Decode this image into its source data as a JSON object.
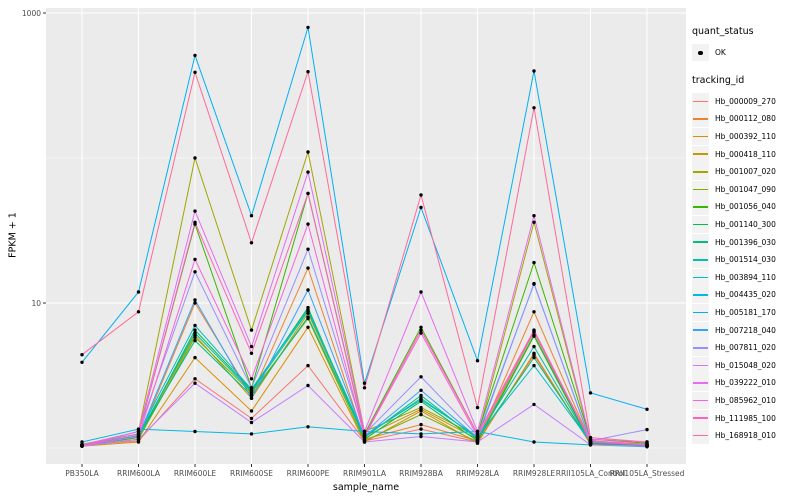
{
  "figure": {
    "background": "#FFFFFF",
    "panel_background": "#EBEBEB",
    "grid_color": "#FFFFFF",
    "point_color": "#000000",
    "tick_color": "#333333",
    "tick_text_color": "#4D4D4D"
  },
  "chart_data": {
    "type": "line",
    "title": "",
    "xlabel": "sample_name",
    "ylabel": "FPKM + 1",
    "y_scale": "log10",
    "ylim": [
      0.93,
      1100
    ],
    "grid": "major-and-minor-white-on-gray",
    "legend_position": "right",
    "y_tick_labels": [
      "1000",
      "10"
    ],
    "y_tick_values": [
      1000,
      10
    ],
    "y_minor_grid_values": [
      100,
      1
    ],
    "categories": [
      "PB350LA",
      "RRIM600LA",
      "RRIM600LE",
      "RRIM600SE",
      "RRIM600PE",
      "RRIM901LA",
      "RRIM928BA",
      "RRIM928LA",
      "RRIM928LE",
      "RRII105LA_Control",
      "RRII105LA_Stressed"
    ],
    "series": [
      {
        "name": "Hb_000009_270",
        "color": "#F8766D",
        "values": [
          1.05,
          1.12,
          3.0,
          1.6,
          3.7,
          1.12,
          1.35,
          1.1,
          4.4,
          1.06,
          1.03
        ]
      },
      {
        "name": "Hb_000112_080",
        "color": "#EA8331",
        "values": [
          1.03,
          1.15,
          10.0,
          2.3,
          17.4,
          1.15,
          1.45,
          1.12,
          8.7,
          1.1,
          1.05
        ]
      },
      {
        "name": "Hb_000392_110",
        "color": "#D89000",
        "values": [
          1.03,
          1.1,
          4.2,
          1.8,
          6.8,
          1.1,
          1.8,
          1.08,
          4.5,
          1.06,
          1.03
        ]
      },
      {
        "name": "Hb_000418_110",
        "color": "#C09B00",
        "values": [
          1.04,
          1.2,
          6.0,
          2.2,
          8.5,
          1.2,
          1.85,
          1.15,
          6.3,
          1.08,
          1.04
        ]
      },
      {
        "name": "Hb_001007_020",
        "color": "#A3A500",
        "values": [
          1.05,
          1.3,
          100,
          6.5,
          110,
          1.3,
          1.9,
          1.2,
          36,
          1.12,
          1.06
        ]
      },
      {
        "name": "Hb_001047_090",
        "color": "#7CAE00",
        "values": [
          1.03,
          1.15,
          5.8,
          2.4,
          7.8,
          1.12,
          1.7,
          1.1,
          5.9,
          1.07,
          1.03
        ]
      },
      {
        "name": "Hb_001056_040",
        "color": "#39B600",
        "values": [
          1.06,
          1.25,
          35,
          2.6,
          57,
          1.25,
          6.8,
          1.25,
          19,
          1.15,
          1.08
        ]
      },
      {
        "name": "Hb_001140_300",
        "color": "#00BB4E",
        "values": [
          1.04,
          1.18,
          6.5,
          2.5,
          9.3,
          1.15,
          2.1,
          1.12,
          6.0,
          1.08,
          1.04
        ]
      },
      {
        "name": "Hb_001396_030",
        "color": "#00BF7D",
        "values": [
          1.05,
          1.2,
          5.5,
          2.3,
          8.0,
          1.18,
          2.3,
          1.15,
          4.2,
          1.1,
          1.05
        ]
      },
      {
        "name": "Hb_001514_030",
        "color": "#00C1A3",
        "values": [
          1.04,
          1.22,
          6.2,
          2.45,
          8.8,
          1.2,
          2.2,
          1.18,
          5.0,
          1.09,
          1.05
        ]
      },
      {
        "name": "Hb_003894_110",
        "color": "#00BFC4",
        "values": [
          1.05,
          1.25,
          7.0,
          2.55,
          9.0,
          1.22,
          2.15,
          1.2,
          3.7,
          1.1,
          1.06
        ]
      },
      {
        "name": "Hb_004435_020",
        "color": "#00BAE0",
        "values": [
          1.1,
          1.35,
          1.3,
          1.25,
          1.4,
          1.3,
          1.25,
          1.3,
          1.1,
          1.05,
          1.02
        ]
      },
      {
        "name": "Hb_005181_170",
        "color": "#00B0F6",
        "values": [
          3.9,
          11.9,
          510,
          40,
          796,
          2.8,
          45.6,
          4.0,
          398,
          2.4,
          1.85
        ]
      },
      {
        "name": "Hb_007218_040",
        "color": "#35A2FF",
        "values": [
          1.03,
          1.2,
          10.5,
          2.2,
          12.3,
          1.2,
          2.5,
          1.18,
          13.6,
          1.1,
          1.05
        ]
      },
      {
        "name": "Hb_007811_020",
        "color": "#9590FF",
        "values": [
          1.04,
          1.3,
          16.4,
          2.6,
          23.5,
          1.25,
          3.1,
          1.22,
          13.5,
          1.12,
          1.34
        ]
      },
      {
        "name": "Hb_015048_020",
        "color": "#C77CFF",
        "values": [
          1.03,
          1.15,
          2.8,
          1.5,
          2.7,
          1.1,
          1.2,
          1.1,
          2.0,
          1.05,
          1.03
        ]
      },
      {
        "name": "Hb_039222_010",
        "color": "#E76BF3",
        "values": [
          1.05,
          1.3,
          43,
          5.0,
          80,
          1.3,
          11.9,
          1.3,
          40,
          1.15,
          1.1
        ]
      },
      {
        "name": "Hb_085962_010",
        "color": "#FA62DB",
        "values": [
          1.04,
          1.2,
          20,
          3.0,
          35,
          1.2,
          6.2,
          1.2,
          6.4,
          1.1,
          1.05
        ]
      },
      {
        "name": "Hb_111985_100",
        "color": "#FF62BC",
        "values": [
          1.05,
          1.25,
          36,
          4.5,
          57,
          1.22,
          6.5,
          1.25,
          6.5,
          1.12,
          1.06
        ]
      },
      {
        "name": "Hb_168918_010",
        "color": "#FF6A98",
        "values": [
          4.4,
          8.7,
          390,
          26,
          394,
          2.6,
          55.6,
          1.9,
          222,
          1.18,
          1.1
        ]
      }
    ],
    "legend": {
      "quant_status": {
        "title": "quant_status",
        "items": [
          {
            "label": "OK",
            "symbol": "black-point"
          }
        ]
      },
      "tracking_id": {
        "title": "tracking_id"
      }
    }
  }
}
